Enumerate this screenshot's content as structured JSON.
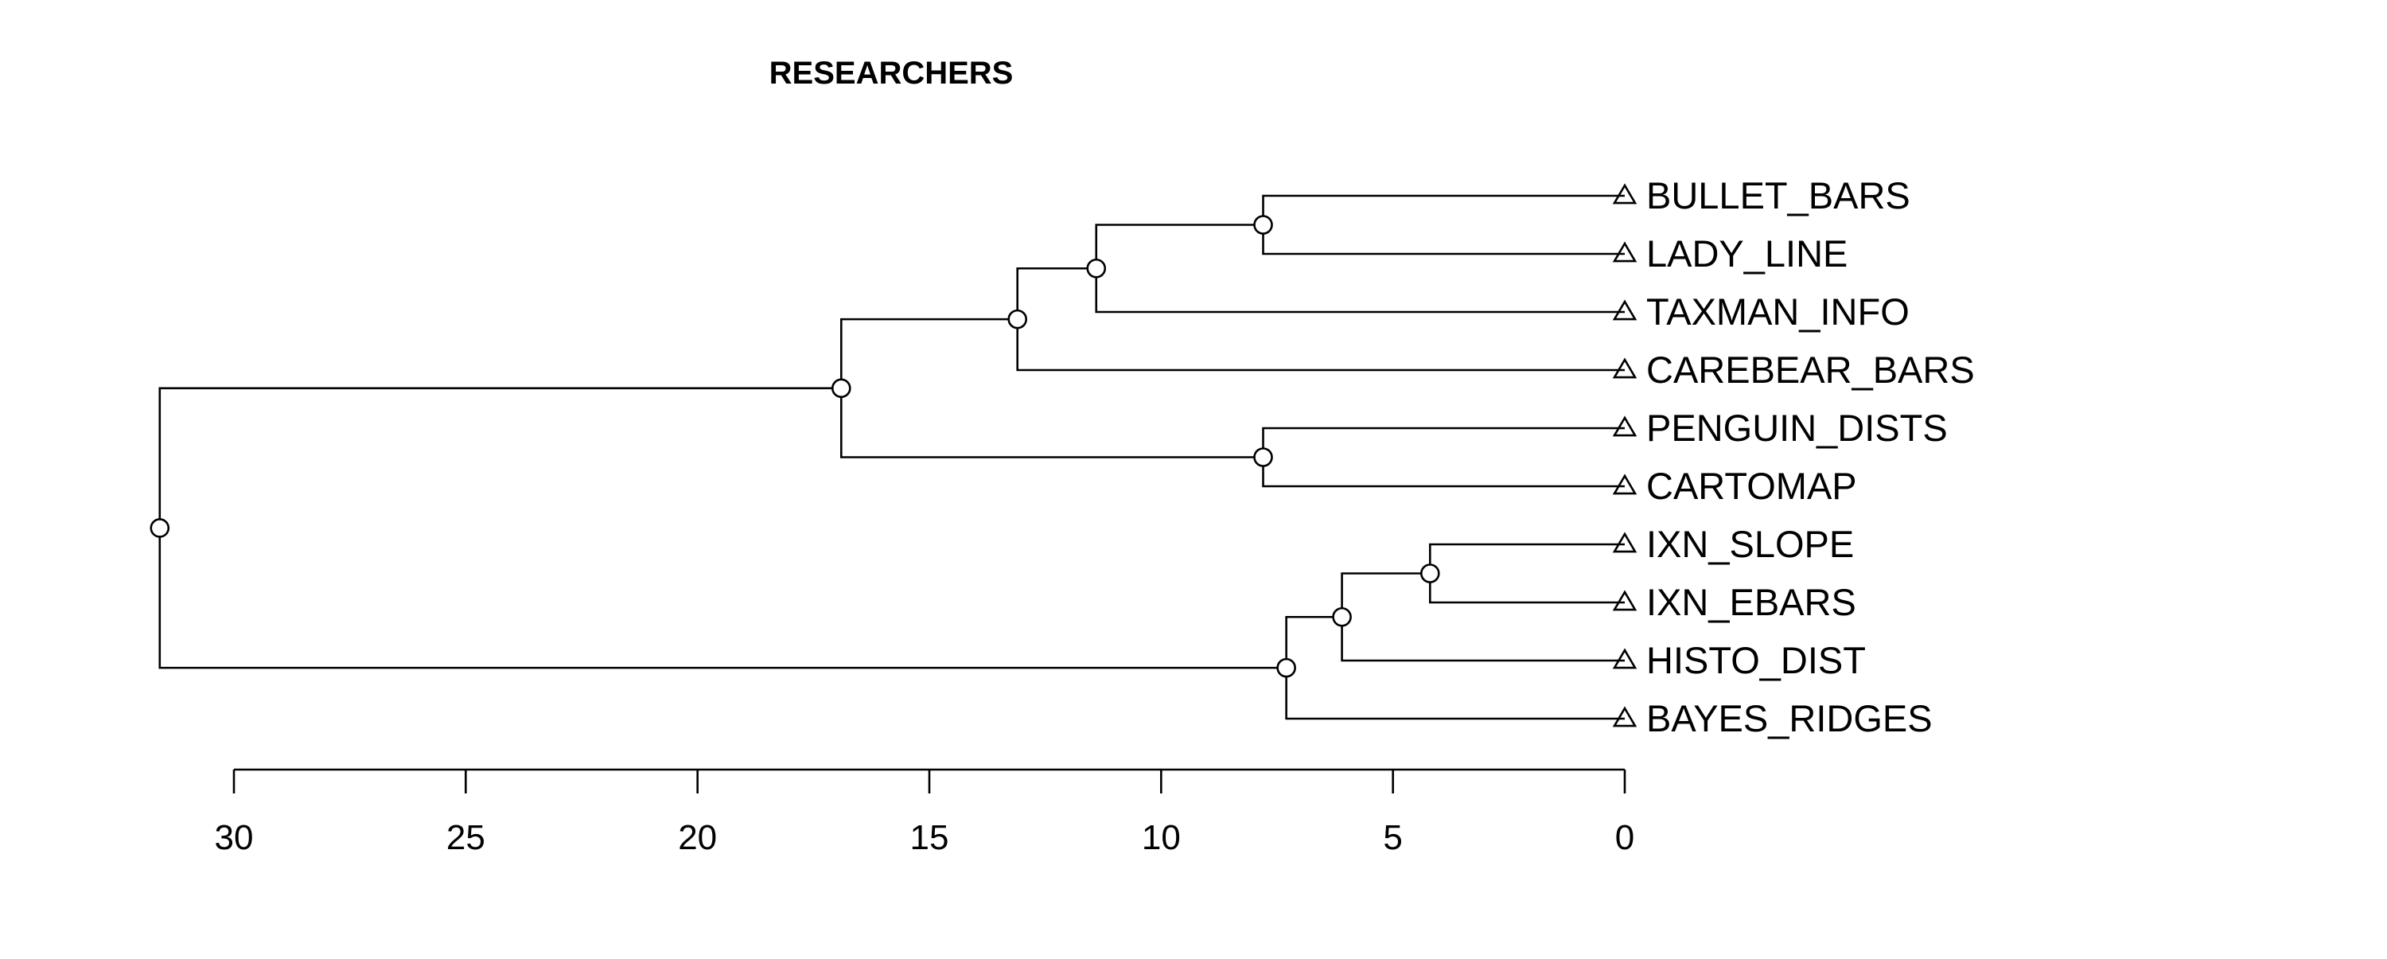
{
  "chart_data": {
    "type": "dendrogram",
    "title": "RESEARCHERS",
    "xlim": [
      0,
      30
    ],
    "axis_direction": "reversed",
    "ticks": [
      30,
      25,
      20,
      15,
      10,
      5,
      0
    ],
    "leaves": [
      "BULLET_BARS",
      "LADY_LINE",
      "TAXMAN_INFO",
      "CAREBEAR_BARS",
      "PENGUIN_DISTS",
      "CARTOMAP",
      "IXN_SLOPE",
      "IXN_EBARS",
      "HISTO_DIST",
      "BAYES_RIDGES"
    ],
    "merges": [
      {
        "id": "m1",
        "children": [
          "BULLET_BARS",
          "LADY_LINE"
        ],
        "height": 7.8
      },
      {
        "id": "m2",
        "children": [
          "m1",
          "TAXMAN_INFO"
        ],
        "height": 11.4
      },
      {
        "id": "m3",
        "children": [
          "m2",
          "CAREBEAR_BARS"
        ],
        "height": 13.1
      },
      {
        "id": "m4",
        "children": [
          "PENGUIN_DISTS",
          "CARTOMAP"
        ],
        "height": 7.8
      },
      {
        "id": "m5",
        "children": [
          "m3",
          "m4"
        ],
        "height": 16.9
      },
      {
        "id": "m6",
        "children": [
          "IXN_SLOPE",
          "IXN_EBARS"
        ],
        "height": 4.2
      },
      {
        "id": "m7",
        "children": [
          "m6",
          "HISTO_DIST"
        ],
        "height": 6.1
      },
      {
        "id": "m8",
        "children": [
          "m7",
          "BAYES_RIDGES"
        ],
        "height": 7.3
      },
      {
        "id": "m9",
        "children": [
          "m5",
          "m8"
        ],
        "height": 31.6
      }
    ]
  }
}
